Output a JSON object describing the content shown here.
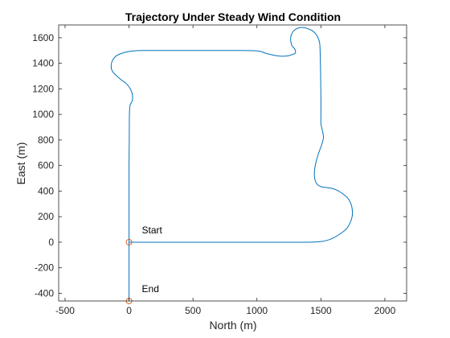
{
  "chart_data": {
    "type": "line",
    "title": "Trajectory Under Steady Wind Condition",
    "xlabel": "North (m)",
    "ylabel": "East (m)",
    "xlim": [
      -550,
      2170
    ],
    "ylim": [
      -460,
      1700
    ],
    "xticks": [
      -500,
      0,
      500,
      1000,
      1500,
      2000
    ],
    "xtick_labels": [
      "-500",
      "0",
      "500",
      "1000",
      "1500",
      "2000"
    ],
    "yticks": [
      -400,
      -200,
      0,
      200,
      400,
      600,
      800,
      1000,
      1200,
      1400,
      1600
    ],
    "ytick_labels": [
      "-400",
      "-200",
      "0",
      "200",
      "400",
      "600",
      "800",
      "1000",
      "1200",
      "1400",
      "1600"
    ],
    "grid": false,
    "colors": {
      "line": "#0072BD",
      "marker": "#D95319",
      "axes": "#262626"
    },
    "series": [
      {
        "x": [
          0,
          300,
          700,
          1100,
          1400,
          1500,
          1550,
          1600,
          1650,
          1700,
          1730,
          1745,
          1745,
          1735,
          1710,
          1670,
          1630,
          1590,
          1550,
          1510,
          1480,
          1460,
          1450,
          1450,
          1460,
          1480,
          1505,
          1520,
          1510,
          1500,
          1500,
          1500,
          1498,
          1495,
          1490,
          1470,
          1440,
          1400,
          1360,
          1330,
          1300,
          1280,
          1265,
          1265,
          1275,
          1290,
          1300,
          1300,
          1280,
          1250,
          1200,
          1150,
          1100,
          1070,
          1050,
          1030,
          1000,
          900,
          700,
          500,
          300,
          100,
          50,
          0,
          -50,
          -100,
          -130,
          -140,
          -130,
          -100,
          -60,
          -20,
          10,
          25,
          28,
          20,
          8,
          3,
          2,
          0,
          0,
          0,
          0
        ],
        "y": [
          0,
          0,
          0,
          0,
          0,
          5,
          15,
          35,
          65,
          105,
          155,
          205,
          255,
          300,
          345,
          380,
          405,
          420,
          427,
          432,
          445,
          470,
          510,
          560,
          620,
          690,
          760,
          820,
          880,
          930,
          1000,
          1150,
          1300,
          1450,
          1560,
          1615,
          1650,
          1670,
          1680,
          1678,
          1665,
          1645,
          1610,
          1570,
          1535,
          1520,
          1500,
          1480,
          1470,
          1460,
          1455,
          1460,
          1470,
          1478,
          1485,
          1492,
          1497,
          1500,
          1500,
          1500,
          1500,
          1500,
          1498,
          1492,
          1480,
          1458,
          1420,
          1378,
          1338,
          1305,
          1270,
          1240,
          1200,
          1160,
          1120,
          1095,
          1070,
          1000,
          800,
          600,
          400,
          200,
          0
        ],
        "xend": [
          0,
          0
        ],
        "yend": [
          0,
          -460
        ]
      }
    ],
    "markers": [
      {
        "label": "Start",
        "x": 0,
        "y": 0
      },
      {
        "label": "End",
        "x": 0,
        "y": -460
      }
    ],
    "annotations": [
      "Start",
      "End"
    ]
  }
}
